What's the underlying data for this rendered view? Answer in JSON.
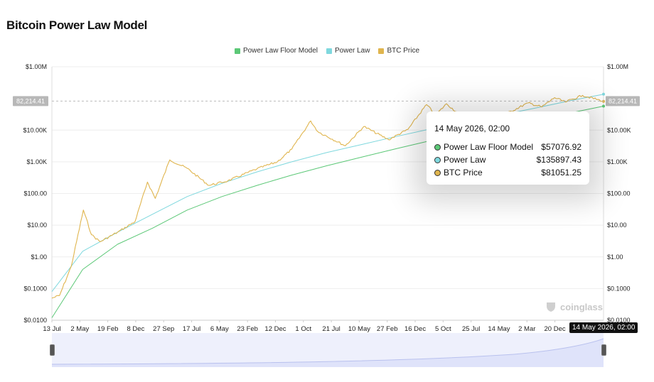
{
  "title": "Bitcoin Power Law Model",
  "legend": [
    {
      "label": "Power Law Floor Model",
      "color": "#5cc877"
    },
    {
      "label": "Power Law",
      "color": "#7fd8de"
    },
    {
      "label": "BTC Price",
      "color": "#e0b54e"
    }
  ],
  "tooltip": {
    "date": "14 May 2026, 02:00",
    "rows": [
      {
        "name": "Power Law Floor Model",
        "value": "$57076.92",
        "color": "#5cc877"
      },
      {
        "name": "Power Law",
        "value": "$135897.43",
        "color": "#7fd8de"
      },
      {
        "name": "BTC Price",
        "value": "$81051.25",
        "color": "#e0b54e"
      }
    ]
  },
  "crosshair": {
    "price_label": "82,214.41",
    "date_label": "14 May 2026, 02:00"
  },
  "watermark": "coinglass",
  "chart_data": {
    "type": "line",
    "title": "Bitcoin Power Law Model",
    "yscale": "log",
    "ylim": [
      0.01,
      1000000
    ],
    "y_tick_labels": [
      "$0.0100",
      "$0.1000",
      "$1.00",
      "$10.00",
      "$100.00",
      "$1.00K",
      "$10.00K",
      "$1.00M"
    ],
    "y_tick_values": [
      0.01,
      0.1,
      1,
      10,
      100,
      1000,
      10000,
      1000000
    ],
    "x_range": [
      "2010-07-13",
      "2026-05-14"
    ],
    "x_tick_labels": [
      "13 Jul",
      "2 May",
      "19 Feb",
      "8 Dec",
      "27 Sep",
      "17 Jul",
      "6 May",
      "23 Feb",
      "12 Dec",
      "1 Oct",
      "21 Jul",
      "10 May",
      "27 Feb",
      "16 Dec",
      "5 Oct",
      "25 Jul",
      "14 May",
      "2 Mar",
      "20 Dec"
    ],
    "x_tick_dates": [
      "2010-07-13",
      "2011-05-02",
      "2012-02-19",
      "2012-12-08",
      "2013-09-27",
      "2014-07-17",
      "2015-05-06",
      "2016-02-23",
      "2016-12-12",
      "2017-10-01",
      "2018-07-21",
      "2019-05-10",
      "2020-02-27",
      "2020-12-16",
      "2021-10-05",
      "2022-07-25",
      "2023-05-14",
      "2024-03-02",
      "2024-12-20"
    ],
    "legend_position": "top-center",
    "grid": true,
    "series": [
      {
        "name": "Power Law Floor Model",
        "color": "#5cc877",
        "x": [
          "2010-07-13",
          "2011-06-01",
          "2012-06-01",
          "2013-06-01",
          "2014-06-01",
          "2015-06-01",
          "2016-06-01",
          "2017-06-01",
          "2018-06-01",
          "2019-06-01",
          "2020-06-01",
          "2021-06-01",
          "2022-06-01",
          "2023-06-01",
          "2024-06-01",
          "2025-06-01",
          "2026-05-14"
        ],
        "y": [
          0.012,
          0.4,
          2.5,
          8,
          30,
          80,
          180,
          380,
          750,
          1400,
          2600,
          4700,
          8000,
          13500,
          22000,
          35000,
          57076.92
        ]
      },
      {
        "name": "Power Law",
        "color": "#7fd8de",
        "x": [
          "2010-07-13",
          "2011-06-01",
          "2012-06-01",
          "2013-06-01",
          "2014-06-01",
          "2015-06-01",
          "2016-06-01",
          "2017-06-01",
          "2018-06-01",
          "2019-06-01",
          "2020-06-01",
          "2021-06-01",
          "2022-06-01",
          "2023-06-01",
          "2024-06-01",
          "2025-06-01",
          "2026-05-14"
        ],
        "y": [
          0.08,
          1.5,
          6,
          22,
          80,
          210,
          480,
          1000,
          1950,
          3500,
          6300,
          11000,
          18500,
          30000,
          50000,
          85000,
          135897.43
        ]
      },
      {
        "name": "BTC Price",
        "color": "#e0b54e",
        "x": [
          "2010-07-13",
          "2010-10-01",
          "2011-02-01",
          "2011-06-08",
          "2011-09-01",
          "2011-12-01",
          "2012-06-01",
          "2012-12-01",
          "2013-04-10",
          "2013-07-01",
          "2013-11-30",
          "2014-06-01",
          "2015-01-15",
          "2015-08-01",
          "2016-06-01",
          "2017-01-01",
          "2017-06-01",
          "2017-12-17",
          "2018-03-01",
          "2018-12-15",
          "2019-06-26",
          "2020-03-12",
          "2020-10-01",
          "2021-04-14",
          "2021-07-20",
          "2021-11-10",
          "2022-06-18",
          "2022-11-21",
          "2023-06-01",
          "2024-03-14",
          "2024-08-05",
          "2024-12-17",
          "2025-04-08",
          "2025-10-06",
          "2026-05-14"
        ],
        "y": [
          0.05,
          0.06,
          0.5,
          30,
          5,
          3,
          6,
          13,
          230,
          70,
          1150,
          620,
          180,
          250,
          600,
          1000,
          2500,
          19500,
          9000,
          3200,
          13000,
          5000,
          10500,
          64000,
          30000,
          68000,
          19000,
          16000,
          27000,
          72000,
          54000,
          106000,
          77000,
          125000,
          81051.25
        ]
      }
    ]
  }
}
